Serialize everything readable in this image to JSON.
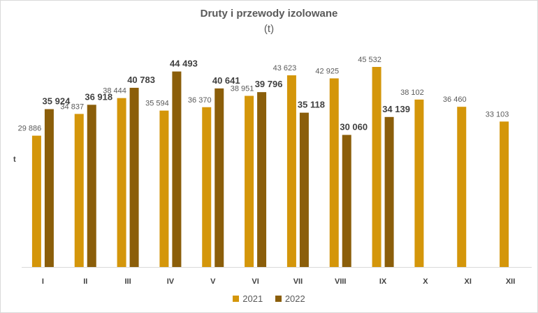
{
  "chart_data": {
    "type": "bar",
    "title": "Druty  i przewody izolowane",
    "subtitle": "(t)",
    "xlabel": "",
    "ylabel": "t",
    "categories": [
      "I",
      "II",
      "III",
      "IV",
      "V",
      "VI",
      "VII",
      "VIII",
      "IX",
      "X",
      "XI",
      "XII"
    ],
    "ylim": [
      0,
      50000
    ],
    "grid": false,
    "legend_position": "bottom",
    "series": [
      {
        "name": "2021",
        "color": "#D4960A",
        "values": [
          29886,
          34837,
          38444,
          35594,
          36370,
          38951,
          43623,
          42925,
          45532,
          38102,
          36460,
          33103
        ],
        "labels": [
          "29 886",
          "34 837",
          "38 444",
          "35 594",
          "36 370",
          "38 951",
          "43 623",
          "42 925",
          "45 532",
          "38 102",
          "36 460",
          "33 103"
        ]
      },
      {
        "name": "2022",
        "color": "#8B5E0A",
        "values": [
          35924,
          36918,
          40783,
          44493,
          40641,
          39796,
          35118,
          30060,
          34139,
          null,
          null,
          null
        ],
        "labels": [
          "35 924",
          "36 918",
          "40 783",
          "44 493",
          "40 641",
          "39 796",
          "35 118",
          "30 060",
          "34 139",
          null,
          null,
          null
        ]
      }
    ]
  }
}
